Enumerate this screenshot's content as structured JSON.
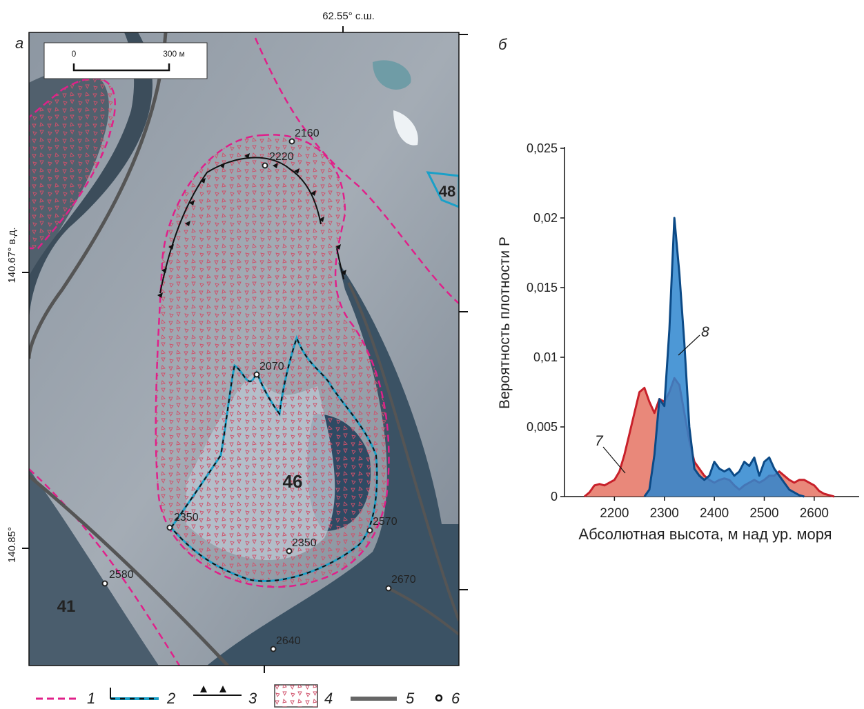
{
  "panel_a": {
    "label": "а",
    "coord_top": "62.55° с.ш.",
    "coord_left_1": "140.67° в.д.",
    "coord_left_2": "140.85°",
    "scale_start": "0",
    "scale_end": "300 м",
    "glaciers": [
      "46",
      "41",
      "48"
    ],
    "elevations": [
      2160,
      2220,
      2070,
      2350,
      2350,
      2570,
      2580,
      2670,
      2640
    ],
    "legend": [
      "1",
      "2",
      "3",
      "4",
      "5",
      "6"
    ]
  },
  "chart_data": {
    "type": "line",
    "panel_label": "б",
    "ylabel": "Вероятность плотности P",
    "xlabel": "Абсолютная высота, м над ур. моря",
    "xlim": [
      2100,
      2690
    ],
    "xticks": [
      2200,
      2300,
      2400,
      2500,
      2600
    ],
    "ylim": [
      0,
      0.025
    ],
    "yticks": [
      0,
      {
        "value": 0.005,
        "label": "0,005"
      },
      {
        "value": 0.01,
        "label": "0,01"
      },
      {
        "value": 0.015,
        "label": "0,015"
      },
      {
        "value": 0.02,
        "label": "0,02"
      },
      {
        "value": 0.025,
        "label": "0,025"
      }
    ],
    "series": [
      {
        "name": "7",
        "color": "#c8202a",
        "x": [
          2140,
          2150,
          2160,
          2170,
          2180,
          2190,
          2200,
          2210,
          2220,
          2230,
          2240,
          2250,
          2260,
          2270,
          2280,
          2290,
          2300,
          2310,
          2320,
          2330,
          2340,
          2350,
          2360,
          2370,
          2380,
          2390,
          2400,
          2410,
          2420,
          2430,
          2440,
          2450,
          2460,
          2470,
          2480,
          2490,
          2500,
          2510,
          2520,
          2530,
          2540,
          2550,
          2560,
          2570,
          2580,
          2590,
          2600,
          2610,
          2620,
          2630,
          2640
        ],
        "values": [
          0,
          0.0003,
          0.0008,
          0.0009,
          0.0008,
          0.001,
          0.0012,
          0.0018,
          0.003,
          0.0045,
          0.006,
          0.0075,
          0.0078,
          0.0068,
          0.006,
          0.007,
          0.0068,
          0.0075,
          0.0085,
          0.008,
          0.006,
          0.004,
          0.0025,
          0.002,
          0.0015,
          0.0012,
          0.001,
          0.0012,
          0.0013,
          0.0012,
          0.0008,
          0.0005,
          0.0008,
          0.001,
          0.0012,
          0.001,
          0.0012,
          0.0015,
          0.0015,
          0.0018,
          0.0015,
          0.0012,
          0.001,
          0.0012,
          0.0012,
          0.001,
          0.0008,
          0.0004,
          0.0002,
          0.0001,
          0
        ]
      },
      {
        "name": "8",
        "color": "#0c4a86",
        "x": [
          2260,
          2270,
          2280,
          2290,
          2300,
          2310,
          2320,
          2330,
          2340,
          2350,
          2360,
          2370,
          2380,
          2390,
          2400,
          2410,
          2420,
          2430,
          2440,
          2450,
          2460,
          2470,
          2480,
          2490,
          2500,
          2510,
          2520,
          2530,
          2540,
          2550,
          2560,
          2570,
          2580
        ],
        "values": [
          0,
          0.0005,
          0.003,
          0.007,
          0.0065,
          0.012,
          0.02,
          0.016,
          0.011,
          0.005,
          0.002,
          0.0015,
          0.0012,
          0.0015,
          0.0025,
          0.002,
          0.0018,
          0.002,
          0.0015,
          0.0018,
          0.0025,
          0.0022,
          0.0028,
          0.0015,
          0.0025,
          0.0028,
          0.002,
          0.0015,
          0.001,
          0.0005,
          0.0003,
          0.0001,
          0
        ]
      }
    ]
  }
}
